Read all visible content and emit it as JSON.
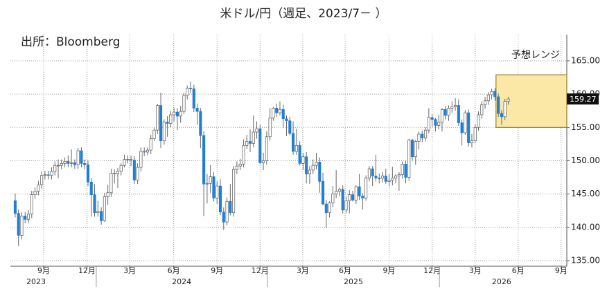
{
  "chart_data": {
    "type": "candlestick",
    "title": "米ドル/円（週足、2023/7－ ）",
    "source": "出所：Bloomberg",
    "up_color": "#ffffff",
    "down_color": "#1f7ed6",
    "grid": true,
    "xlim": [
      -1.45,
      166.7
    ],
    "ylim": [
      134.17,
      168.94
    ],
    "yticks": [
      {
        "value": 135,
        "label": "135.00"
      },
      {
        "value": 140,
        "label": "140.00"
      },
      {
        "value": 145,
        "label": "145.00"
      },
      {
        "value": 150,
        "label": "150.00"
      },
      {
        "value": 155,
        "label": "155.00"
      },
      {
        "value": 160,
        "label": "160.00"
      },
      {
        "value": 165,
        "label": "165.00"
      }
    ],
    "xticks": [
      {
        "value": 8.6,
        "label": "9月"
      },
      {
        "value": 21.7,
        "label": "12月"
      },
      {
        "value": 34.6,
        "label": "3月"
      },
      {
        "value": 47.9,
        "label": "6月"
      },
      {
        "value": 61,
        "label": "9月"
      },
      {
        "value": 74,
        "label": "12月"
      },
      {
        "value": 86.9,
        "label": "3月"
      },
      {
        "value": 99.7,
        "label": "6月"
      },
      {
        "value": 113,
        "label": "9月"
      },
      {
        "value": 126,
        "label": "12月"
      },
      {
        "value": 139,
        "label": "3月"
      },
      {
        "value": 152,
        "label": "6月"
      },
      {
        "value": 165,
        "label": "9月"
      }
    ],
    "year_ticks": [
      24.5,
      76.2,
      128.2
    ],
    "year_labels": [
      {
        "value": 6.3,
        "label": "2023"
      },
      {
        "value": 50.3,
        "label": "2024"
      },
      {
        "value": 102.2,
        "label": "2025"
      },
      {
        "value": 147,
        "label": "2026"
      }
    ],
    "forecast": {
      "label": "予想レンジ",
      "low": 155,
      "high": 162.9,
      "x_start": 145.3,
      "x_end": 166.7,
      "color": "#fbe7a6",
      "border": "#a07d1c"
    },
    "last_price": 159.27,
    "candles": [
      [
        144.0,
        145.1,
        141.5,
        142.1
      ],
      [
        142.1,
        142.7,
        137.2,
        138.8
      ],
      [
        138.8,
        142.3,
        138.2,
        141.7
      ],
      [
        141.7,
        142.3,
        140.6,
        141.2
      ],
      [
        141.2,
        142.6,
        140.6,
        142.0
      ],
      [
        142.0,
        145.5,
        141.4,
        144.9
      ],
      [
        144.9,
        146.0,
        144.3,
        145.4
      ],
      [
        145.4,
        147.0,
        144.8,
        146.4
      ],
      [
        146.4,
        148.4,
        145.8,
        147.8
      ],
      [
        147.8,
        148.5,
        147.2,
        147.9
      ],
      [
        147.9,
        148.5,
        147.2,
        147.8
      ],
      [
        147.8,
        149.0,
        147.2,
        148.4
      ],
      [
        148.4,
        149.9,
        147.8,
        149.3
      ],
      [
        149.3,
        150.2,
        147.4,
        149.3
      ],
      [
        149.3,
        150.2,
        148.7,
        149.6
      ],
      [
        149.6,
        150.5,
        149.0,
        149.9
      ],
      [
        149.9,
        150.8,
        149.0,
        149.6
      ],
      [
        149.6,
        151.7,
        149.0,
        149.7
      ],
      [
        149.7,
        150.2,
        148.8,
        149.4
      ],
      [
        149.4,
        151.9,
        148.8,
        151.5
      ],
      [
        151.5,
        152.0,
        149.0,
        149.6
      ],
      [
        149.6,
        150.2,
        148.8,
        149.4
      ],
      [
        149.4,
        150.0,
        146.2,
        146.8
      ],
      [
        146.8,
        147.4,
        141.6,
        144.9
      ],
      [
        144.9,
        146.5,
        141.6,
        142.2
      ],
      [
        142.2,
        144.0,
        141.6,
        142.4
      ],
      [
        142.4,
        143.0,
        140.4,
        141.0
      ],
      [
        141.0,
        145.2,
        140.8,
        144.6
      ],
      [
        144.6,
        146.4,
        143.4,
        145.2
      ],
      [
        145.2,
        148.8,
        144.6,
        148.1
      ],
      [
        148.1,
        148.7,
        146.6,
        148.1
      ],
      [
        148.1,
        148.9,
        145.9,
        148.4
      ],
      [
        148.4,
        149.6,
        147.8,
        149.3
      ],
      [
        149.3,
        150.9,
        149.0,
        150.2
      ],
      [
        150.2,
        150.8,
        149.6,
        150.2
      ],
      [
        150.2,
        150.8,
        149.2,
        150.1
      ],
      [
        150.1,
        150.7,
        146.5,
        147.1
      ],
      [
        147.1,
        149.6,
        146.5,
        149.0
      ],
      [
        149.0,
        152.0,
        148.4,
        151.4
      ],
      [
        151.4,
        152.0,
        150.7,
        151.3
      ],
      [
        151.3,
        152.0,
        150.8,
        151.6
      ],
      [
        151.6,
        153.9,
        151.0,
        153.3
      ],
      [
        153.3,
        155.0,
        153.0,
        154.6
      ],
      [
        154.6,
        158.5,
        154.0,
        158.3
      ],
      [
        158.3,
        160.2,
        151.9,
        153.0
      ],
      [
        153.0,
        156.2,
        152.4,
        155.8
      ],
      [
        155.8,
        156.7,
        153.6,
        155.6
      ],
      [
        155.6,
        157.5,
        155.0,
        156.9
      ],
      [
        156.9,
        157.9,
        155.9,
        157.3
      ],
      [
        157.3,
        157.9,
        154.6,
        156.7
      ],
      [
        156.7,
        158.2,
        155.7,
        157.4
      ],
      [
        157.4,
        160.2,
        157.0,
        159.8
      ],
      [
        159.8,
        161.3,
        159.2,
        160.9
      ],
      [
        160.9,
        161.9,
        160.2,
        160.8
      ],
      [
        160.8,
        161.4,
        157.3,
        157.9
      ],
      [
        157.9,
        158.6,
        155.4,
        157.4
      ],
      [
        157.4,
        157.9,
        151.9,
        153.8
      ],
      [
        153.8,
        154.4,
        141.7,
        146.5
      ],
      [
        146.5,
        148.0,
        143.6,
        146.6
      ],
      [
        146.6,
        149.4,
        145.2,
        147.6
      ],
      [
        147.6,
        148.3,
        143.9,
        144.4
      ],
      [
        144.4,
        146.9,
        143.5,
        146.2
      ],
      [
        146.2,
        147.2,
        141.8,
        142.3
      ],
      [
        142.3,
        143.0,
        139.6,
        140.8
      ],
      [
        140.8,
        144.5,
        140.3,
        143.9
      ],
      [
        143.9,
        146.5,
        141.8,
        142.2
      ],
      [
        142.2,
        149.2,
        141.6,
        148.7
      ],
      [
        148.7,
        149.9,
        148.0,
        149.2
      ],
      [
        149.2,
        150.3,
        148.6,
        149.5
      ],
      [
        149.5,
        153.2,
        149.0,
        152.3
      ],
      [
        152.3,
        153.9,
        151.8,
        152.9
      ],
      [
        152.9,
        154.7,
        151.3,
        152.6
      ],
      [
        152.6,
        156.8,
        152.0,
        154.3
      ],
      [
        154.3,
        155.9,
        153.3,
        154.8
      ],
      [
        154.8,
        155.4,
        149.5,
        149.7
      ],
      [
        149.7,
        151.2,
        148.6,
        150.0
      ],
      [
        150.0,
        154.4,
        149.4,
        153.6
      ],
      [
        153.6,
        157.9,
        153.0,
        156.4
      ],
      [
        156.4,
        158.1,
        156.0,
        157.9
      ],
      [
        157.9,
        158.6,
        156.6,
        157.2
      ],
      [
        157.2,
        158.9,
        156.8,
        157.7
      ],
      [
        157.7,
        158.4,
        154.9,
        156.3
      ],
      [
        156.3,
        156.8,
        153.7,
        156.0
      ],
      [
        156.0,
        156.6,
        153.8,
        154.1
      ],
      [
        154.1,
        155.9,
        150.9,
        151.4
      ],
      [
        151.4,
        154.8,
        150.9,
        152.3
      ],
      [
        152.3,
        152.9,
        149.3,
        149.6
      ],
      [
        149.6,
        151.2,
        148.6,
        150.6
      ],
      [
        150.6,
        151.3,
        146.6,
        148.0
      ],
      [
        148.0,
        149.2,
        146.5,
        148.6
      ],
      [
        148.6,
        150.2,
        148.0,
        149.3
      ],
      [
        149.3,
        151.2,
        148.7,
        149.8
      ],
      [
        149.8,
        150.5,
        145.2,
        146.9
      ],
      [
        146.9,
        148.2,
        143.3,
        143.5
      ],
      [
        143.5,
        144.1,
        139.9,
        142.2
      ],
      [
        142.2,
        143.9,
        141.5,
        143.7
      ],
      [
        143.7,
        146.2,
        143.0,
        145.0
      ],
      [
        145.0,
        148.6,
        144.4,
        145.4
      ],
      [
        145.4,
        146.0,
        144.7,
        145.7
      ],
      [
        145.7,
        146.3,
        142.1,
        142.6
      ],
      [
        142.6,
        144.6,
        142.1,
        144.0
      ],
      [
        144.0,
        145.6,
        142.1,
        144.9
      ],
      [
        144.9,
        145.5,
        143.9,
        144.1
      ],
      [
        144.1,
        146.3,
        143.5,
        146.1
      ],
      [
        146.1,
        148.0,
        144.1,
        144.7
      ],
      [
        144.7,
        145.1,
        142.7,
        144.4
      ],
      [
        144.4,
        147.8,
        144.0,
        147.4
      ],
      [
        147.4,
        149.2,
        146.9,
        148.8
      ],
      [
        148.8,
        149.2,
        146.2,
        147.7
      ],
      [
        147.7,
        150.9,
        146.9,
        147.4
      ],
      [
        147.4,
        148.1,
        146.6,
        147.4
      ],
      [
        147.4,
        148.3,
        146.7,
        147.7
      ],
      [
        147.7,
        148.8,
        146.5,
        146.9
      ],
      [
        146.9,
        148.0,
        146.2,
        147.1
      ],
      [
        147.1,
        149.1,
        146.3,
        147.4
      ],
      [
        147.4,
        148.0,
        146.6,
        147.7
      ],
      [
        147.7,
        148.3,
        145.5,
        147.9
      ],
      [
        147.9,
        149.9,
        147.3,
        149.5
      ],
      [
        149.5,
        150.0,
        146.6,
        147.5
      ],
      [
        147.5,
        153.3,
        147.0,
        153.1
      ],
      [
        153.1,
        153.3,
        150.0,
        150.6
      ],
      [
        150.6,
        153.1,
        149.4,
        152.9
      ],
      [
        152.9,
        154.4,
        151.7,
        154.0
      ],
      [
        154.0,
        154.5,
        152.8,
        153.4
      ],
      [
        153.4,
        155.0,
        152.9,
        154.6
      ],
      [
        154.6,
        157.9,
        154.1,
        156.5
      ],
      [
        156.5,
        157.0,
        155.1,
        156.2
      ],
      [
        156.2,
        156.4,
        154.4,
        155.3
      ],
      [
        155.3,
        156.9,
        154.7,
        155.8
      ],
      [
        155.8,
        157.9,
        154.4,
        157.7
      ],
      [
        157.7,
        158.2,
        156.2,
        156.8
      ],
      [
        156.8,
        158.3,
        156.0,
        157.9
      ],
      [
        157.9,
        158.9,
        157.2,
        158.1
      ],
      [
        158.1,
        159.4,
        157.5,
        158.3
      ],
      [
        158.3,
        159.2,
        155.2,
        155.7
      ],
      [
        155.7,
        156.2,
        152.3,
        154.2
      ],
      [
        154.2,
        157.6,
        153.9,
        157.2
      ],
      [
        157.2,
        157.7,
        152.1,
        152.7
      ],
      [
        152.7,
        154.0,
        152.0,
        153.0
      ],
      [
        153.0,
        155.5,
        152.6,
        155.0
      ],
      [
        155.0,
        157.4,
        154.5,
        156.9
      ],
      [
        156.9,
        158.9,
        156.3,
        158.4
      ],
      [
        158.4,
        159.6,
        157.8,
        159.0
      ],
      [
        159.0,
        160.3,
        158.4,
        159.9
      ],
      [
        159.9,
        160.8,
        159.2,
        160.4
      ],
      [
        160.4,
        160.9,
        159.0,
        159.6
      ],
      [
        159.6,
        160.1,
        156.6,
        157.1
      ],
      [
        157.1,
        157.6,
        155.4,
        156.6
      ],
      [
        156.6,
        159.3,
        156.1,
        158.9
      ],
      [
        158.9,
        159.6,
        158.4,
        159.27
      ]
    ]
  }
}
